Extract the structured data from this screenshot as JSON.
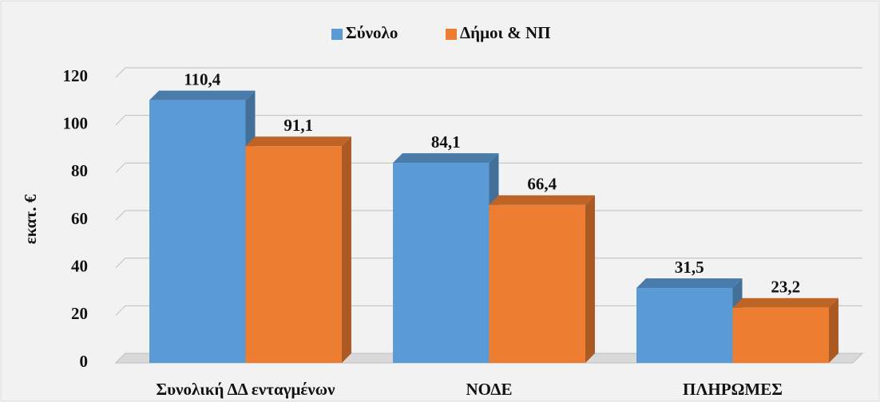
{
  "chart_data": {
    "type": "bar3d",
    "categories": [
      "Συνολική ΔΔ ενταγμένων",
      "ΝΟΔΕ",
      "ΠΛΗΡΩΜΕΣ"
    ],
    "series": [
      {
        "name": "Σύνολο",
        "color": "#5b9bd5",
        "values": [
          110.4,
          84.1,
          31.5
        ],
        "value_labels": [
          "110,4",
          "84,1",
          "31,5"
        ]
      },
      {
        "name": "Δήμοι & ΝΠ",
        "color": "#ed7d31",
        "values": [
          91.1,
          66.4,
          23.2
        ],
        "value_labels": [
          "91,1",
          "66,4",
          "23,2"
        ]
      }
    ],
    "y_label": "εκατ. €",
    "ylim": [
      0,
      120
    ],
    "yticks": [
      0,
      20,
      40,
      60,
      80,
      100,
      120
    ],
    "grid": true,
    "legend": "top"
  }
}
